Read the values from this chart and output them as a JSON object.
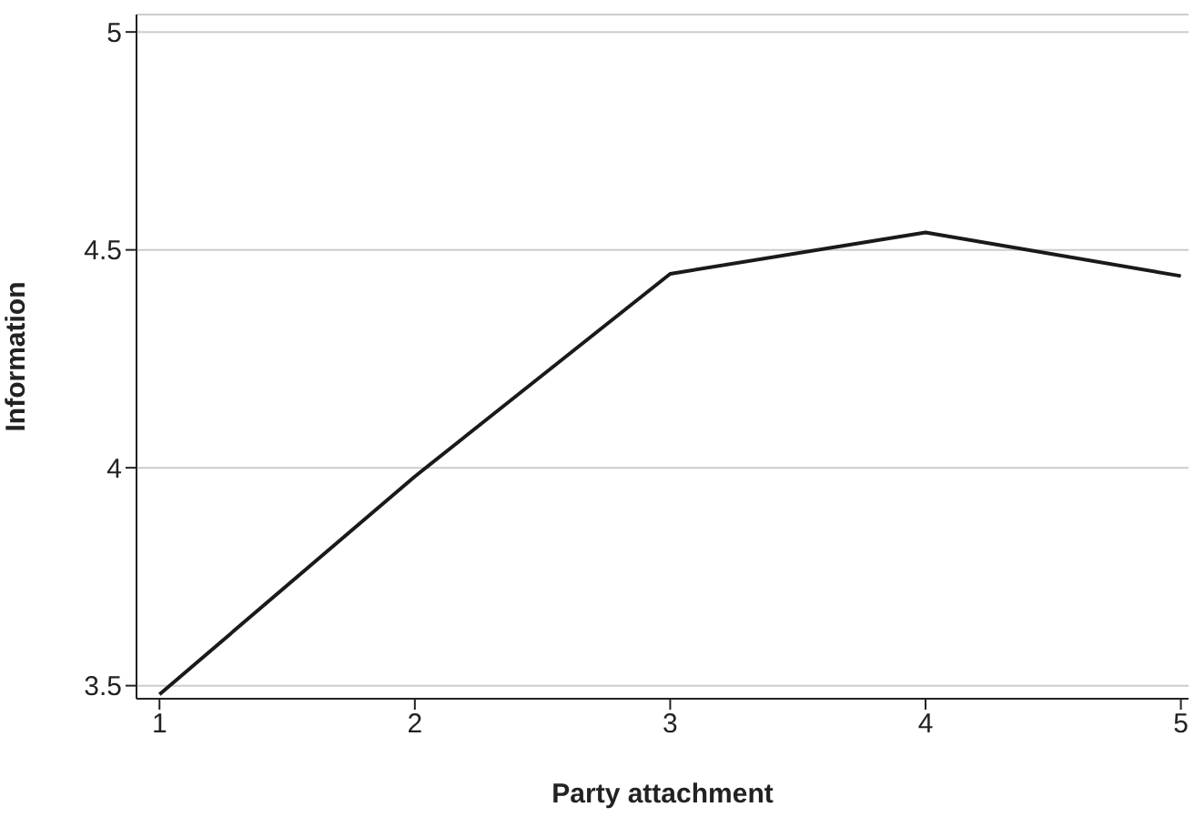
{
  "chart_data": {
    "type": "line",
    "xlabel": "Party attachment",
    "ylabel": "Information",
    "x": [
      1,
      2,
      3,
      4,
      5
    ],
    "series": [
      {
        "color": "#1a1a1a",
        "values": [
          3.48,
          3.98,
          4.445,
          4.54,
          4.44
        ]
      }
    ],
    "xlim": [
      0.91,
      5.03
    ],
    "xticks": [
      1,
      2,
      3,
      4,
      5
    ],
    "ylim": [
      3.47,
      5.04
    ],
    "yticks": [
      3.5,
      4,
      4.5,
      5
    ],
    "grid": "y",
    "marker": "none",
    "line_style": "solid",
    "legend": false
  }
}
